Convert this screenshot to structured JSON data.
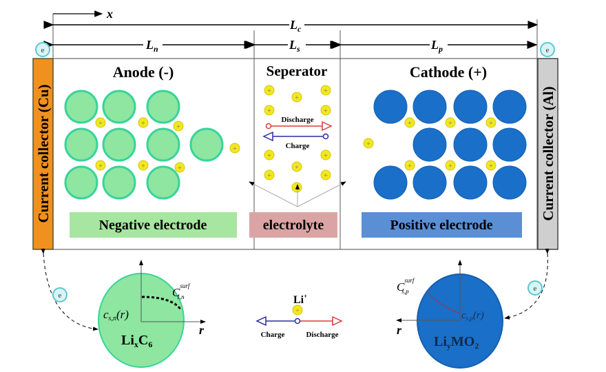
{
  "dimensions": {
    "x": "x",
    "Lc": "L",
    "Lc_sub": "c",
    "Ln": "L",
    "Ln_sub": "n",
    "Ls": "L",
    "Ls_sub": "s",
    "Lp": "L",
    "Lp_sub": "p"
  },
  "regions": {
    "anode": "Anode (-)",
    "separator": "Seperator",
    "cathode": "Cathode (+)"
  },
  "collectors": {
    "left": "Current collector (Cu)",
    "right": "Current collector (Al)"
  },
  "electron": "e",
  "ion_symbol": "+",
  "separator_arrows": {
    "discharge": "Discharge",
    "charge": "Charge"
  },
  "labels": {
    "negative": "Negative electrode",
    "electrolyte": "electrolyte",
    "positive": "Positive electrode"
  },
  "bottom": {
    "anode_particle": {
      "formula_base": "Li",
      "formula_x": "x",
      "formula_c": "C",
      "formula_6": "6",
      "c_r": "c",
      "c_r_sub": "s,n",
      "c_r_arg": "(r)",
      "c_surf": "C",
      "c_surf_sup": "surf",
      "c_surf_sub": "s,n",
      "axis": "r"
    },
    "cathode_particle": {
      "formula_base": "Li",
      "formula_y": "y",
      "formula_mo": "MO",
      "formula_2": "2",
      "c_r": "c",
      "c_r_sub": "s,p",
      "c_r_arg": "(r)",
      "c_surf": "C",
      "c_surf_sup": "surf",
      "c_surf_sub": "s,p",
      "axis": "r"
    },
    "legend": {
      "ion": "Li",
      "ion_sup": "+",
      "charge": "Charge",
      "discharge": "Discharge"
    }
  },
  "colors": {
    "copper": "#f0901e",
    "aluminum": "#c8c8c8",
    "anode": "#8ee6a0",
    "anode_edge": "#38d49a",
    "cathode": "#1a6fc8",
    "ion": "#f2e81e",
    "negative_box": "#a6e6a0",
    "electrolyte_box": "#dba4a4",
    "positive_box": "#5a8fd6",
    "discharge": "#d83a3a",
    "charge": "#2a2aa0"
  }
}
